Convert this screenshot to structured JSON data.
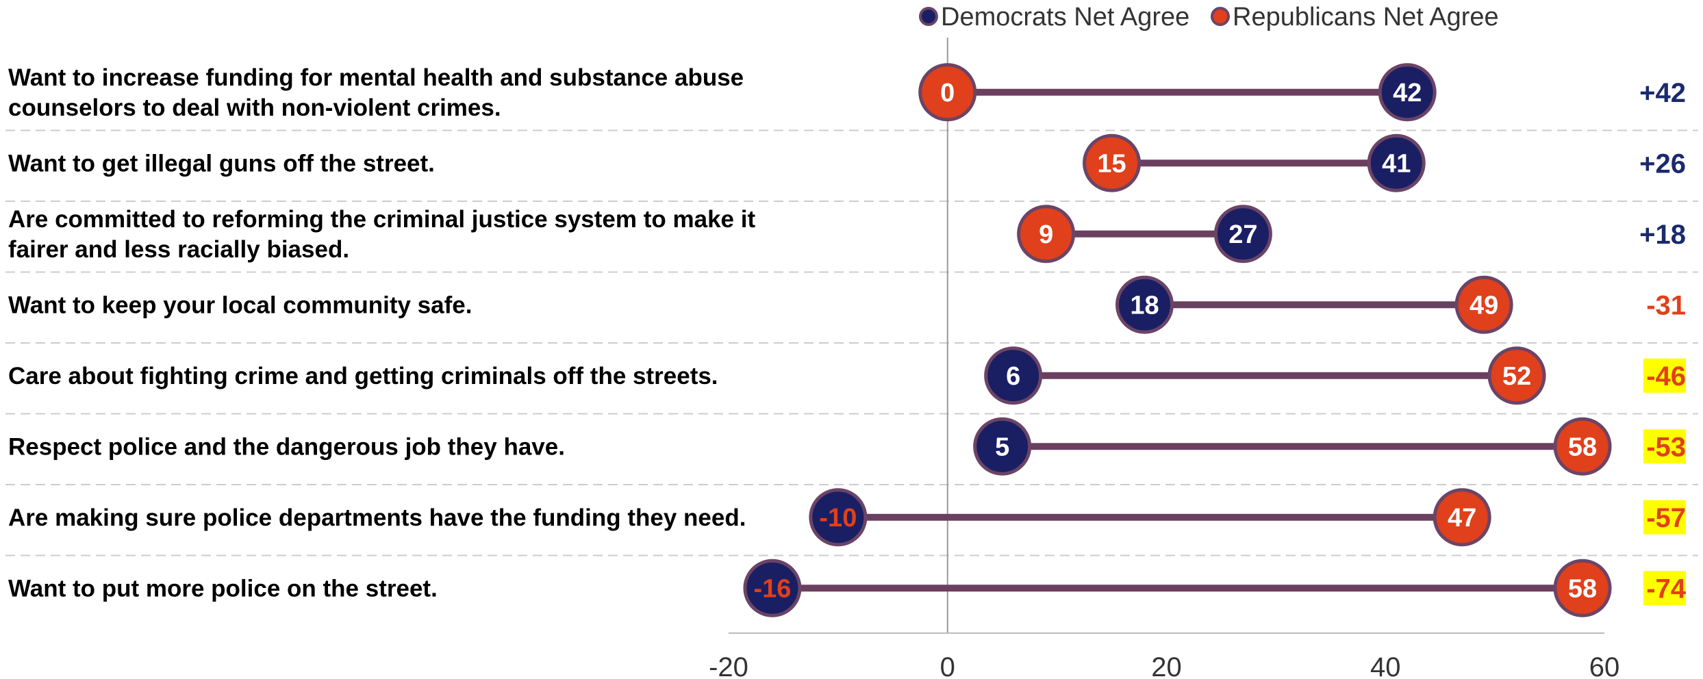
{
  "chart_data": {
    "type": "dumbbell",
    "xlim": [
      -20,
      60
    ],
    "x_ticks": [
      "-20",
      "0",
      "20",
      "40",
      "60"
    ],
    "x_tick_values": [
      -20,
      0,
      20,
      40,
      60
    ],
    "legend": {
      "placement": "top-center",
      "items": [
        {
          "label": "Democrats Net Agree",
          "color": "#1a1f64"
        },
        {
          "label": "Republicans Net Agree",
          "color": "#e0401b"
        }
      ]
    },
    "colors": {
      "democrats": "#1a1f64",
      "republicans": "#e0401b",
      "dot_border": "#6b4466",
      "connector": "#6b3f5f",
      "diff_positive": "#1a2a6c",
      "diff_negative": "#e0401b",
      "highlight": "#ffff00",
      "gridline": "#cccccc"
    },
    "rows": [
      {
        "label_lines": [
          "Want to increase funding for mental health and substance abuse",
          "counselors to deal with non-violent crimes."
        ],
        "democrats": 42,
        "republicans": 0,
        "diff": "+42",
        "highlight": false
      },
      {
        "label_lines": [
          "Want to get illegal guns off the street."
        ],
        "democrats": 41,
        "republicans": 15,
        "diff": "+26",
        "highlight": false
      },
      {
        "label_lines": [
          "Are committed to reforming the criminal justice system to make it",
          "fairer and less racially biased."
        ],
        "democrats": 27,
        "republicans": 9,
        "diff": "+18",
        "highlight": false
      },
      {
        "label_lines": [
          "Want to keep your local community safe."
        ],
        "democrats": 18,
        "republicans": 49,
        "diff": "-31",
        "highlight": false
      },
      {
        "label_lines": [
          "Care about fighting crime and getting criminals off the streets."
        ],
        "democrats": 6,
        "republicans": 52,
        "diff": "-46",
        "highlight": true
      },
      {
        "label_lines": [
          "Respect police and the dangerous job they have."
        ],
        "democrats": 5,
        "republicans": 58,
        "diff": "-53",
        "highlight": true
      },
      {
        "label_lines": [
          "Are making sure police departments have the funding they need."
        ],
        "democrats": -10,
        "republicans": 47,
        "diff": "-57",
        "highlight": true
      },
      {
        "label_lines": [
          "Want to put more police on the street."
        ],
        "democrats": -16,
        "republicans": 58,
        "diff": "-74",
        "highlight": true
      }
    ]
  }
}
